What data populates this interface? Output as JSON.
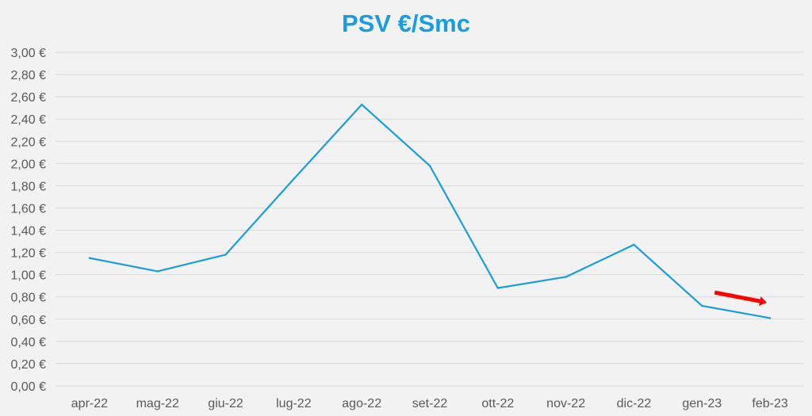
{
  "colors": {
    "background": "#f2f2f2",
    "title": "#1a9ddb",
    "line": "#1a9ddb",
    "grid": "#d9d9d9",
    "axis_text": "#595959",
    "arrow": "#ff0000"
  },
  "chart_data": {
    "type": "line",
    "title": "PSV €/Smc",
    "xlabel": "",
    "ylabel": "",
    "categories": [
      "apr-22",
      "mag-22",
      "giu-22",
      "lug-22",
      "ago-22",
      "set-22",
      "ott-22",
      "nov-22",
      "dic-22",
      "gen-23",
      "feb-23"
    ],
    "series": [
      {
        "values": [
          1.15,
          1.03,
          1.18,
          1.86,
          2.53,
          1.98,
          0.88,
          0.98,
          1.27,
          0.72,
          0.61
        ]
      }
    ],
    "ylim": [
      0,
      3
    ],
    "yticks": [
      0,
      0.2,
      0.4,
      0.6,
      0.8,
      1.0,
      1.2,
      1.4,
      1.6,
      1.8,
      2.0,
      2.2,
      2.4,
      2.6,
      2.8,
      3.0
    ],
    "ytick_labels": [
      "0,00 €",
      "0,20 €",
      "0,40 €",
      "0,60 €",
      "0,80 €",
      "1,00 €",
      "1,20 €",
      "1,40 €",
      "1,60 €",
      "1,80 €",
      "2,00 €",
      "2,20 €",
      "2,40 €",
      "2,60 €",
      "2,80 €",
      "3,00 €"
    ],
    "grid": true,
    "legend": "none",
    "annotations": [
      {
        "type": "arrow",
        "from": {
          "x": "gen-23",
          "y": 0.84
        },
        "to": {
          "x": "feb-23",
          "y": 0.75
        },
        "color": "#ff0000"
      }
    ]
  }
}
